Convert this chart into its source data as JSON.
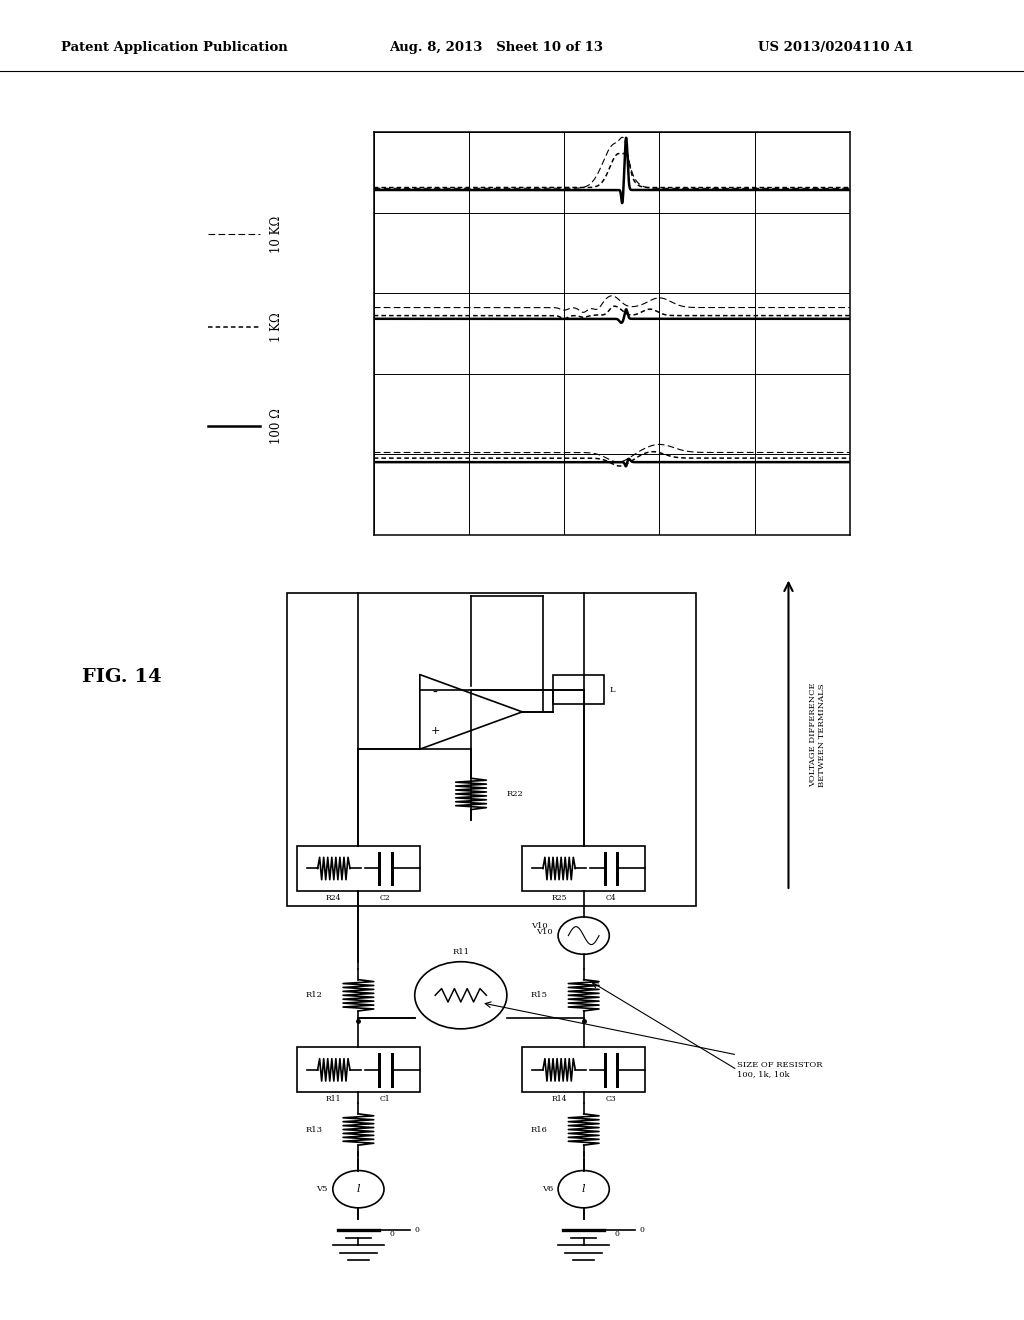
{
  "page_header": {
    "left": "Patent Application Publication",
    "center": "Aug. 8, 2013   Sheet 10 of 13",
    "right": "US 2013/0204110 A1"
  },
  "fig_label": "FIG. 14",
  "legend_labels": [
    "10 KΩ",
    "1 KΩ",
    "100 Ω"
  ],
  "voltage_diff_label": "VOLTAGE DIFFERENCE\nBETWEEN TERMINALS",
  "size_resistor_label": "SIZE OF RESISTOR\n100, 1k, 10k"
}
